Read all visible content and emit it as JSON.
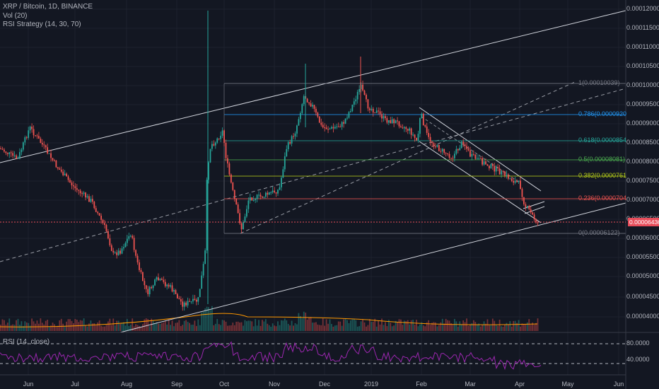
{
  "legend": {
    "symbol": "XRP / Bitcoin, 1D, BINANCE",
    "volume": "Vol (20)",
    "strategy": "RSI Strategy (14, 30, 70)"
  },
  "rsi_legend": "RSI (14, close)",
  "price_axis": [
    "0.00012000",
    "0.00011500",
    "0.00011000",
    "0.00010500",
    "0.00010000",
    "0.00009500",
    "0.00009000",
    "0.00008500",
    "0.00008000",
    "0.00007500",
    "0.00007000",
    "0.00006500",
    "0.00006000",
    "0.00005500",
    "0.00005000",
    "0.00004500",
    "0.00004000"
  ],
  "last_price": "0.00006436",
  "rsi_axis": [
    "80.0000",
    "40.0000"
  ],
  "time_axis": [
    "Jun",
    "Jul",
    "Aug",
    "Sep",
    "Oct",
    "Nov",
    "Dec",
    "2019",
    "Feb",
    "Mar",
    "Apr",
    "May",
    "Jun"
  ],
  "fib_levels": [
    {
      "label": "1(0.00010039)",
      "color": "#787b86"
    },
    {
      "label": "0.786(0.0000920",
      "color": "#2196f3"
    },
    {
      "label": "0.618(0.0000854",
      "color": "#26a69a"
    },
    {
      "label": "0.5(0.00008081)",
      "color": "#4caf50"
    },
    {
      "label": "0.382(0.0000761",
      "color": "#b5cc18"
    },
    {
      "label": "0.236(0.0000704",
      "color": "#ef5350"
    },
    {
      "label": "0(0.00006122)",
      "color": "#787b86"
    }
  ],
  "colors": {
    "background": "#131722",
    "up": "#26a69a",
    "down": "#ef5350",
    "rsi_line": "#9c27b0",
    "channel": "#d1d4dc",
    "last_price": "#e74c5a"
  }
}
